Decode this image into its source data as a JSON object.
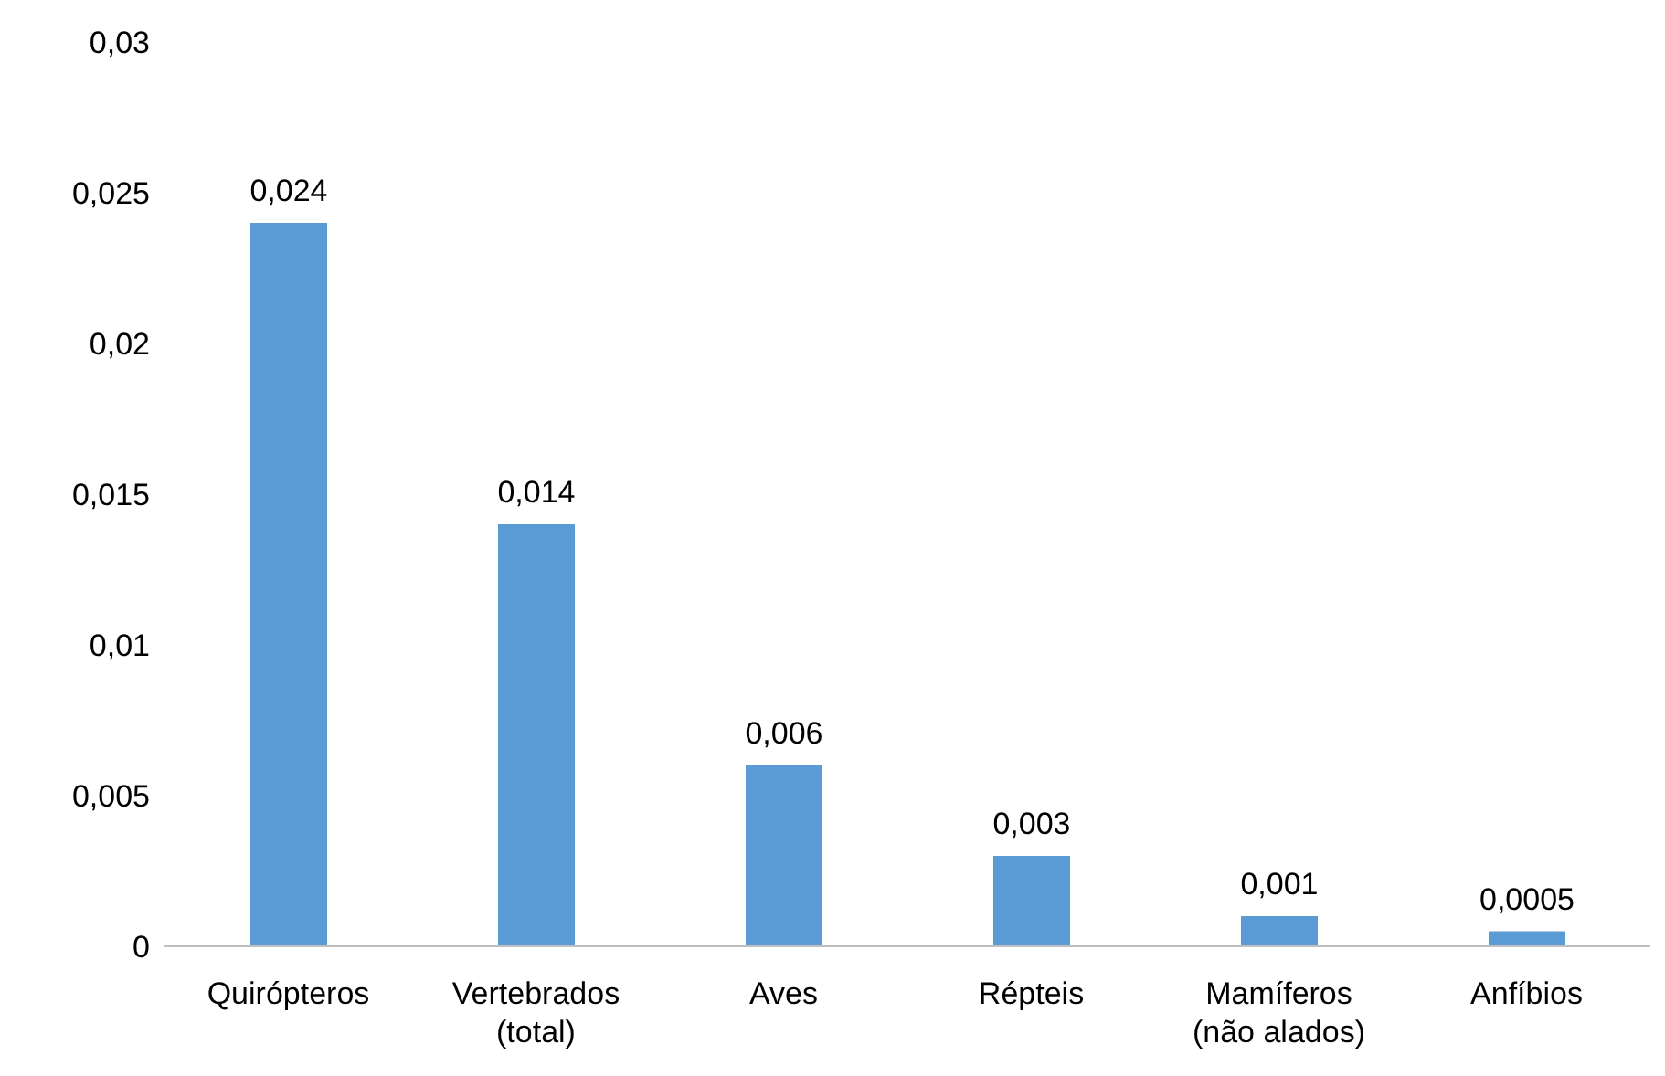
{
  "chart_data": {
    "type": "bar",
    "categories": [
      "Quirópteros",
      "Vertebrados\n(total)",
      "Aves",
      "Répteis",
      "Mamíferos\n(não alados)",
      "Anfíbios"
    ],
    "values": [
      0.024,
      0.014,
      0.006,
      0.003,
      0.001,
      0.0005
    ],
    "value_labels": [
      "0,024",
      "0,014",
      "0,006",
      "0,003",
      "0,001",
      "0,0005"
    ],
    "color": "#5b9bd5",
    "ylim": [
      0,
      0.03
    ],
    "yticks": [
      {
        "value": 0,
        "label": "0"
      },
      {
        "value": 0.005,
        "label": "0,005"
      },
      {
        "value": 0.01,
        "label": "0,01"
      },
      {
        "value": 0.015,
        "label": "0,015"
      },
      {
        "value": 0.02,
        "label": "0,02"
      },
      {
        "value": 0.025,
        "label": "0,025"
      },
      {
        "value": 0.03,
        "label": "0,03"
      }
    ],
    "grid": false,
    "legend": false
  }
}
